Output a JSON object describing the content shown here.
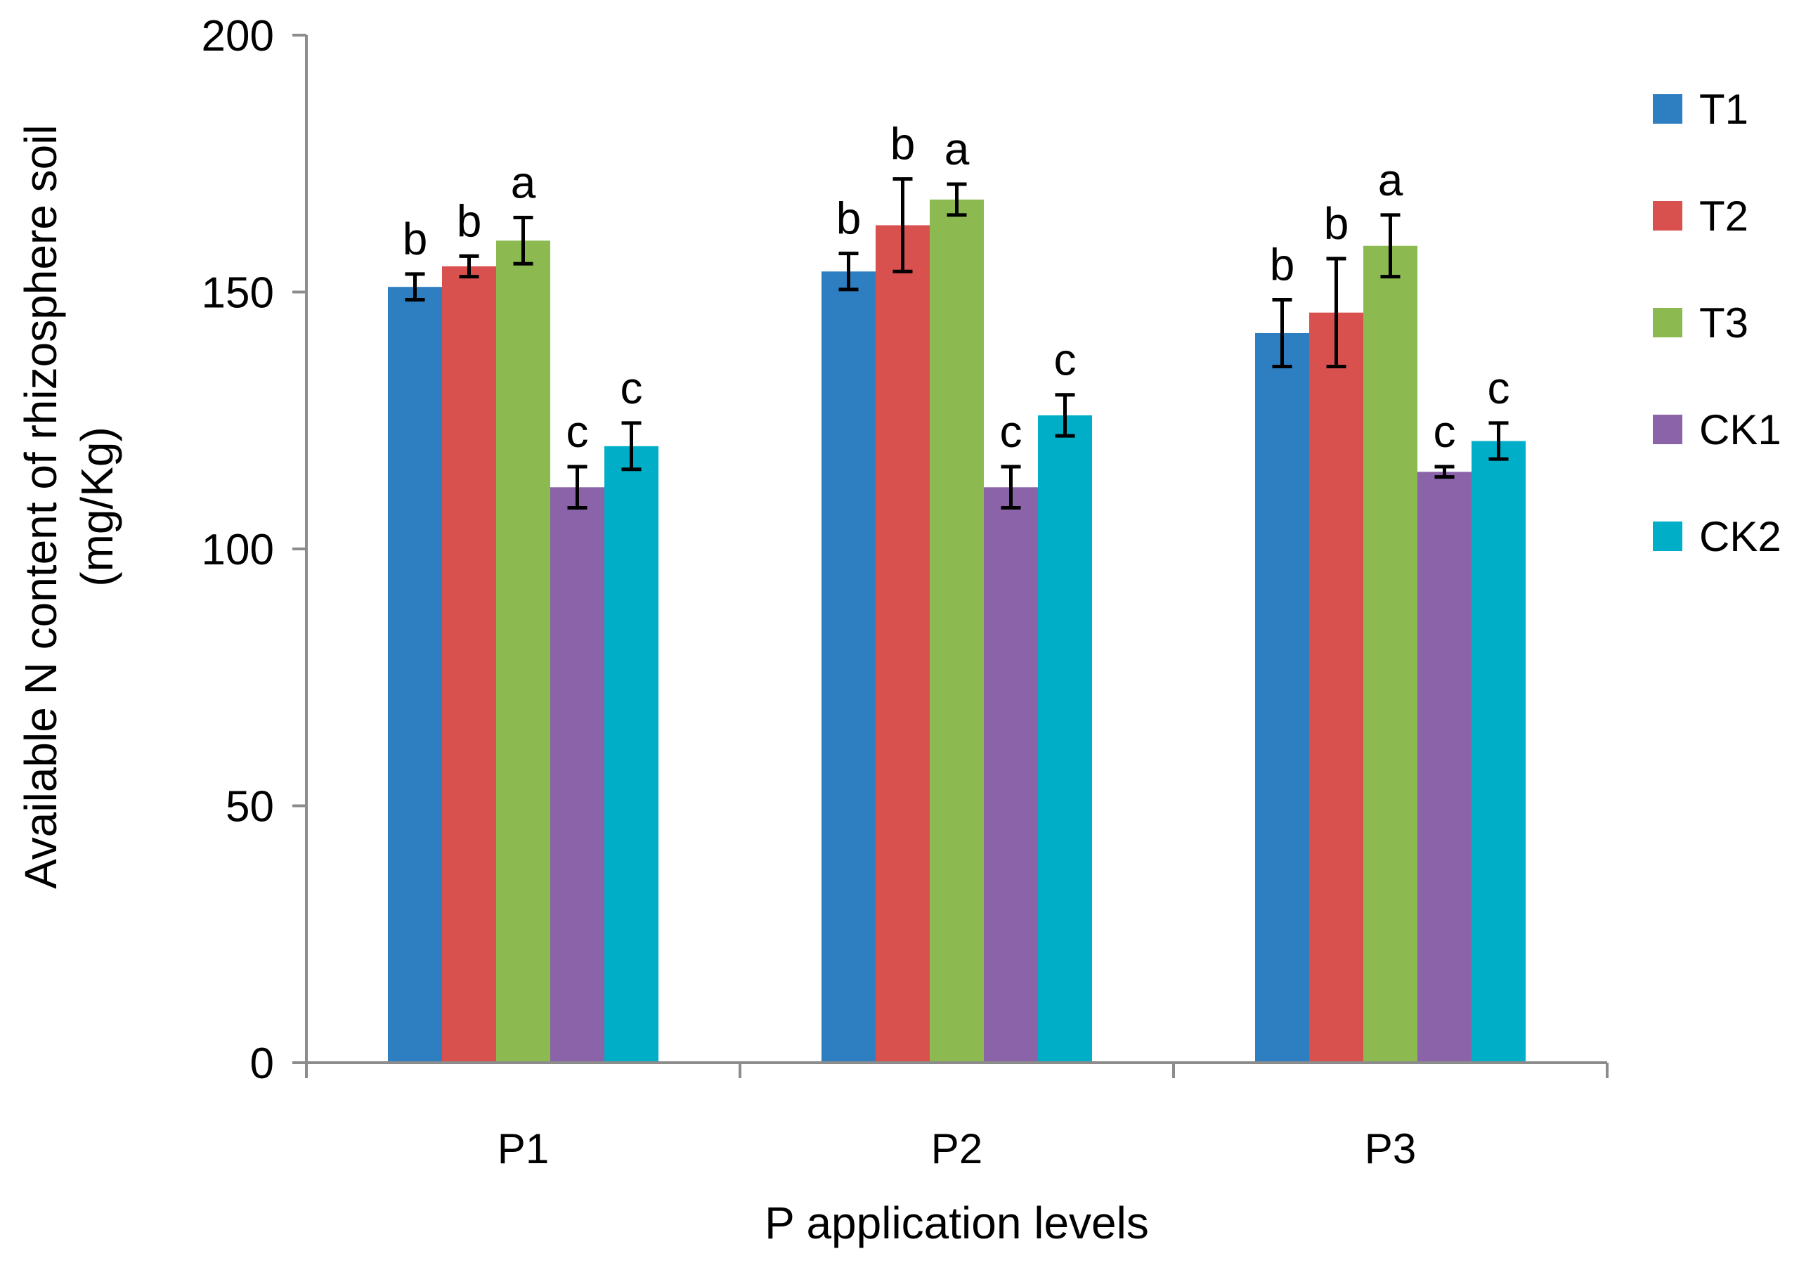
{
  "chart_data": {
    "type": "bar",
    "title": "",
    "xlabel": "P application levels",
    "ylabel_line1": "Available N content of rhizosphere soil",
    "ylabel_line2": "(mg/Kg)",
    "ylim": [
      0,
      200
    ],
    "yticks": [
      0,
      50,
      100,
      150,
      200
    ],
    "categories": [
      "P1",
      "P2",
      "P3"
    ],
    "legend_position": "right",
    "series": [
      {
        "name": "T1",
        "color": "#2e7fc2",
        "values": [
          151,
          154,
          142
        ],
        "errors": [
          2.5,
          3.5,
          6.5
        ],
        "sig": [
          "b",
          "b",
          "b"
        ]
      },
      {
        "name": "T2",
        "color": "#d9514e",
        "values": [
          155,
          163,
          146
        ],
        "errors": [
          2.0,
          9.0,
          10.5
        ],
        "sig": [
          "b",
          "b",
          "b"
        ]
      },
      {
        "name": "T3",
        "color": "#8cba50",
        "values": [
          160,
          168,
          159
        ],
        "errors": [
          4.5,
          3.0,
          6.0
        ],
        "sig": [
          "a",
          "a",
          "a"
        ]
      },
      {
        "name": "CK1",
        "color": "#8a63a8",
        "values": [
          112,
          112,
          115
        ],
        "errors": [
          4.0,
          4.0,
          1.0
        ],
        "sig": [
          "c",
          "c",
          "c"
        ]
      },
      {
        "name": "CK2",
        "color": "#00aec8",
        "values": [
          120,
          126,
          121
        ],
        "errors": [
          4.5,
          4.0,
          3.5
        ],
        "sig": [
          "c",
          "c",
          "c"
        ]
      }
    ]
  }
}
